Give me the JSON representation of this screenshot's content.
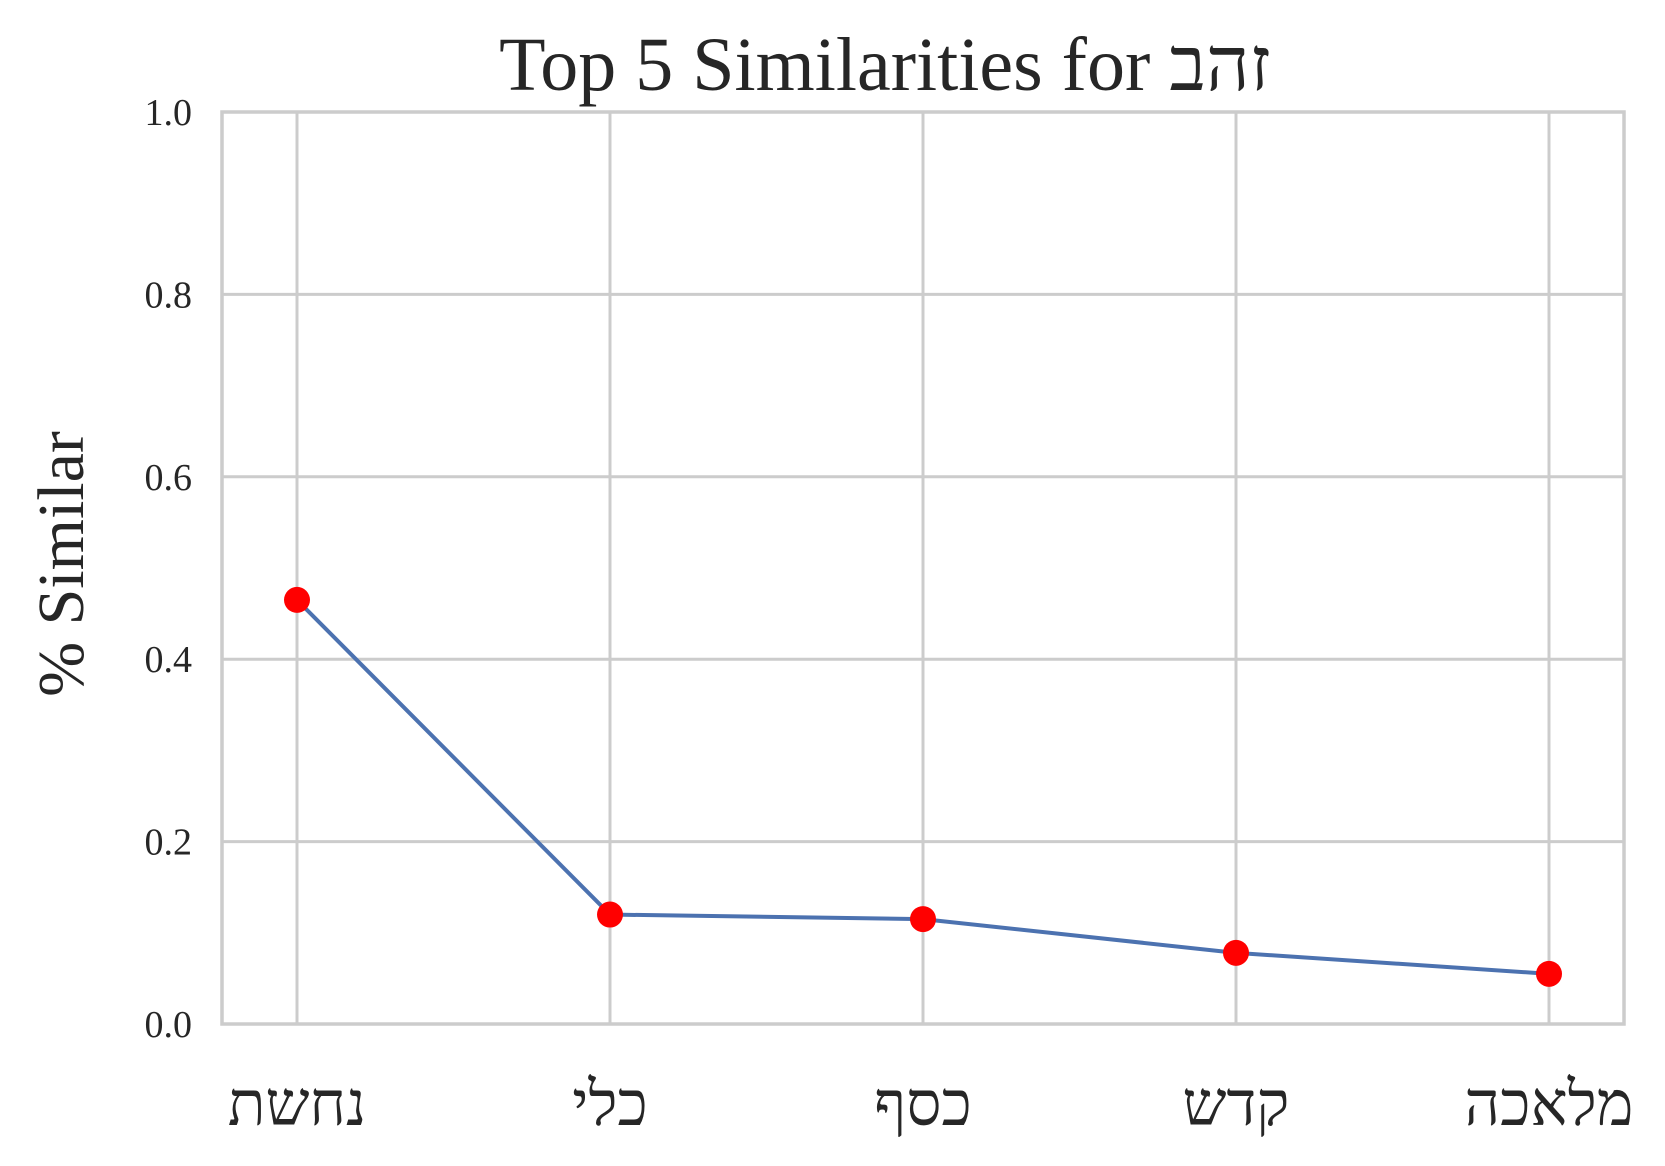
{
  "chart_data": {
    "type": "line",
    "title": "Top 5 Similarities for זהב",
    "xlabel": "",
    "ylabel": "% Similar",
    "categories": [
      "נחשת",
      "כלי",
      "כסף",
      "קדש",
      "מלאכה"
    ],
    "values": [
      0.465,
      0.12,
      0.115,
      0.078,
      0.055
    ],
    "ylim": [
      0,
      1
    ],
    "yticks": [
      "0.0",
      "0.2",
      "0.4",
      "0.6",
      "0.8",
      "1.0"
    ],
    "grid": true,
    "colors": {
      "line": "#4c72b0",
      "marker": "#ff0000",
      "grid": "#cccccc"
    }
  }
}
